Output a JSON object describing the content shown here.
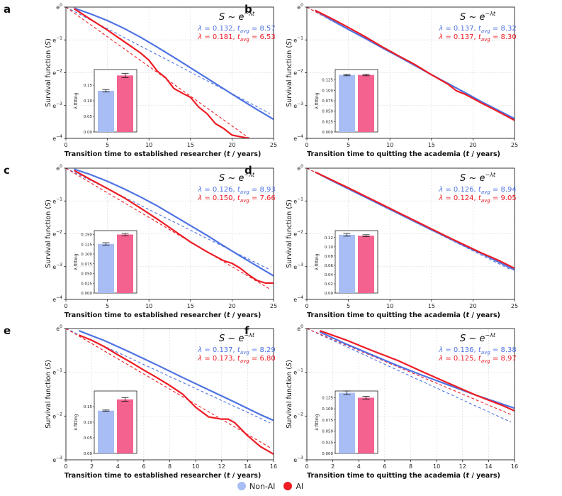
{
  "colors": {
    "nonai": "#4f73e3",
    "ai": "#ee1c25",
    "nonai_bar": "#a9bdf5",
    "ai_bar": "#f4628f"
  },
  "legend": [
    {
      "label": "Non-AI",
      "color": "#a9bdf5"
    },
    {
      "label": "AI",
      "color": "#ee1c25"
    }
  ],
  "chart_data": [
    {
      "panel": "a",
      "type": "line",
      "formula": "S ~ e^{-λt}",
      "xlabel": "Transition time to established researcher (t / years)",
      "ylabel": "Survival function (S)",
      "xlim": [
        0,
        25
      ],
      "xticks": [
        0,
        5,
        10,
        15,
        20,
        25
      ],
      "ylim": [
        -4,
        0
      ],
      "yticks": [
        0,
        -1,
        -2,
        -3,
        -4
      ],
      "series": [
        {
          "name": "Non-AI",
          "lambda": 0.132,
          "tavg": 8.57,
          "x": [
            1,
            3,
            5,
            7,
            9,
            11,
            13,
            15,
            17,
            19,
            21,
            23,
            25
          ],
          "y": [
            -0.03,
            -0.21,
            -0.41,
            -0.65,
            -0.92,
            -1.22,
            -1.53,
            -1.85,
            -2.17,
            -2.49,
            -2.81,
            -3.12,
            -3.42
          ]
        },
        {
          "name": "AI",
          "lambda": 0.181,
          "tavg": 6.53,
          "x": [
            1,
            3,
            5,
            7,
            9,
            10,
            11,
            12,
            13,
            14,
            15,
            16,
            17,
            18,
            19,
            20,
            21,
            22
          ],
          "y": [
            -0.05,
            -0.38,
            -0.7,
            -1.05,
            -1.4,
            -1.62,
            -1.95,
            -2.15,
            -2.48,
            -2.62,
            -2.75,
            -3.05,
            -3.25,
            -3.55,
            -3.7,
            -3.9,
            -3.95,
            -4.0
          ]
        }
      ],
      "bars": {
        "ylim": [
          0,
          0.2
        ],
        "yticks": [
          "0.00",
          "0.05",
          "0.10",
          "0.15"
        ],
        "ylabel": "λ fitting",
        "values": [
          0.132,
          0.181
        ],
        "errors": [
          0.004,
          0.007
        ]
      }
    },
    {
      "panel": "b",
      "type": "line",
      "formula": "S ~ e^{-λt}",
      "xlabel": "Transition time to quitting the academia (t / years)",
      "ylabel": "Survival function (S)",
      "xlim": [
        0,
        25
      ],
      "xticks": [
        0,
        5,
        10,
        15,
        20,
        25
      ],
      "ylim": [
        -4,
        0
      ],
      "yticks": [
        0,
        -1,
        -2,
        -3,
        -4
      ],
      "series": [
        {
          "name": "Non-AI",
          "lambda": 0.137,
          "tavg": 8.32,
          "x": [
            1,
            3,
            5,
            7,
            9,
            11,
            13,
            15,
            17,
            19,
            21,
            23,
            25
          ],
          "y": [
            -0.1,
            -0.4,
            -0.68,
            -0.95,
            -1.23,
            -1.5,
            -1.78,
            -2.06,
            -2.33,
            -2.6,
            -2.88,
            -3.14,
            -3.4
          ]
        },
        {
          "name": "AI",
          "lambda": 0.137,
          "tavg": 8.3,
          "x": [
            1,
            3,
            5,
            7,
            9,
            11,
            13,
            15,
            17,
            18,
            19,
            21,
            23,
            25
          ],
          "y": [
            -0.1,
            -0.35,
            -0.62,
            -0.9,
            -1.2,
            -1.48,
            -1.75,
            -2.06,
            -2.35,
            -2.55,
            -2.65,
            -2.92,
            -3.18,
            -3.45
          ]
        }
      ],
      "bars": {
        "ylim": [
          0,
          0.15
        ],
        "yticks": [
          "0.000",
          "0.025",
          "0.050",
          "0.075",
          "0.100",
          "0.125"
        ],
        "ylabel": "λ fitting",
        "values": [
          0.137,
          0.137
        ],
        "errors": [
          0.002,
          0.002
        ]
      }
    },
    {
      "panel": "c",
      "type": "line",
      "formula": "S ~ e^{-λt}",
      "xlabel": "Transition time to established researcher (t / years)",
      "ylabel": "Survival function (S)",
      "xlim": [
        0,
        25
      ],
      "xticks": [
        0,
        5,
        10,
        15,
        20,
        25
      ],
      "ylim": [
        -4,
        0
      ],
      "yticks": [
        0,
        -1,
        -2,
        -3,
        -4
      ],
      "series": [
        {
          "name": "Non-AI",
          "lambda": 0.126,
          "tavg": 8.93,
          "x": [
            1,
            3,
            5,
            7,
            9,
            11,
            13,
            15,
            17,
            19,
            21,
            23,
            25
          ],
          "y": [
            -0.03,
            -0.2,
            -0.4,
            -0.63,
            -0.88,
            -1.15,
            -1.45,
            -1.75,
            -2.05,
            -2.37,
            -2.68,
            -2.98,
            -3.28
          ]
        },
        {
          "name": "AI",
          "lambda": 0.15,
          "tavg": 7.66,
          "x": [
            1,
            3,
            5,
            7,
            9,
            11,
            13,
            15,
            17,
            19,
            20,
            21,
            22,
            23,
            24,
            25
          ],
          "y": [
            -0.07,
            -0.35,
            -0.62,
            -0.9,
            -1.22,
            -1.55,
            -1.9,
            -2.25,
            -2.55,
            -2.82,
            -2.9,
            -3.05,
            -3.25,
            -3.42,
            -3.5,
            -3.5
          ]
        }
      ],
      "bars": {
        "ylim": [
          0,
          0.16
        ],
        "yticks": [
          "0.000",
          "0.025",
          "0.050",
          "0.075",
          "0.100",
          "0.125",
          "0.150"
        ],
        "ylabel": "λ fitting",
        "values": [
          0.126,
          0.15
        ],
        "errors": [
          0.003,
          0.003
        ]
      }
    },
    {
      "panel": "d",
      "type": "line",
      "formula": "S ~ e^{-λt}",
      "xlabel": "Transition time to quitting the academia (t / years)",
      "ylabel": "Survival function (S)",
      "xlim": [
        0,
        25
      ],
      "xticks": [
        0,
        5,
        10,
        15,
        20,
        25
      ],
      "ylim": [
        -4,
        0
      ],
      "yticks": [
        0,
        -1,
        -2,
        -3,
        -4
      ],
      "series": [
        {
          "name": "Non-AI",
          "lambda": 0.126,
          "tavg": 8.94,
          "x": [
            1,
            3,
            5,
            7,
            9,
            11,
            13,
            15,
            17,
            19,
            21,
            23,
            25
          ],
          "y": [
            -0.12,
            -0.38,
            -0.63,
            -0.88,
            -1.13,
            -1.38,
            -1.63,
            -1.88,
            -2.12,
            -2.37,
            -2.6,
            -2.85,
            -3.1
          ]
        },
        {
          "name": "AI",
          "lambda": 0.124,
          "tavg": 9.05,
          "x": [
            1,
            3,
            5,
            7,
            9,
            11,
            13,
            15,
            17,
            19,
            21,
            23,
            25
          ],
          "y": [
            -0.12,
            -0.36,
            -0.6,
            -0.85,
            -1.1,
            -1.35,
            -1.6,
            -1.85,
            -2.1,
            -2.34,
            -2.58,
            -2.8,
            -3.05
          ]
        }
      ],
      "bars": {
        "ylim": [
          0,
          0.135
        ],
        "yticks": [
          "0.00",
          "0.02",
          "0.04",
          "0.06",
          "0.08",
          "0.10",
          "0.12"
        ],
        "ylabel": "λ fitting",
        "values": [
          0.126,
          0.124
        ],
        "errors": [
          0.003,
          0.002
        ]
      }
    },
    {
      "panel": "e",
      "type": "line",
      "formula": "S ~ e^{-λt}",
      "xlabel": "Transition time to established researcher (t / years)",
      "ylabel": "Survival function (S)",
      "xlim": [
        0,
        16
      ],
      "xticks": [
        0,
        2,
        4,
        6,
        8,
        10,
        12,
        14,
        16
      ],
      "ylim": [
        -3,
        0
      ],
      "yticks": [
        0,
        -1,
        -2,
        -3
      ],
      "series": [
        {
          "name": "Non-AI",
          "lambda": 0.137,
          "tavg": 8.29,
          "x": [
            1,
            3,
            5,
            7,
            9,
            11,
            13,
            15,
            16
          ],
          "y": [
            -0.05,
            -0.28,
            -0.55,
            -0.83,
            -1.12,
            -1.4,
            -1.68,
            -1.97,
            -2.1
          ]
        },
        {
          "name": "AI",
          "lambda": 0.173,
          "tavg": 6.8,
          "x": [
            1,
            2,
            3,
            4,
            5,
            6,
            7,
            8,
            9,
            10,
            11,
            12,
            12.5,
            13,
            14,
            15,
            16
          ],
          "y": [
            -0.15,
            -0.27,
            -0.42,
            -0.6,
            -0.77,
            -0.95,
            -1.12,
            -1.3,
            -1.5,
            -1.8,
            -2.02,
            -2.07,
            -2.07,
            -2.15,
            -2.45,
            -2.7,
            -2.87
          ]
        }
      ],
      "bars": {
        "ylim": [
          0,
          0.2
        ],
        "yticks": [
          "0.00",
          "0.05",
          "0.10",
          "0.15"
        ],
        "ylabel": "λ fitting",
        "values": [
          0.137,
          0.173
        ],
        "errors": [
          0.002,
          0.006
        ]
      }
    },
    {
      "panel": "f",
      "type": "line",
      "formula": "S ~ e^{-λt}",
      "xlabel": "Transition time to quitting the academia (t / years)",
      "ylabel": "Survival function (S)",
      "xlim": [
        0,
        16
      ],
      "xticks": [
        0,
        2,
        4,
        6,
        8,
        10,
        12,
        14,
        16
      ],
      "ylim": [
        -3,
        0
      ],
      "yticks": [
        0,
        -1,
        -2,
        -3
      ],
      "series": [
        {
          "name": "Non-AI",
          "lambda": 0.136,
          "tavg": 8.38,
          "x": [
            1,
            3,
            5,
            7,
            9,
            11,
            13,
            15,
            16
          ],
          "y": [
            -0.08,
            -0.35,
            -0.6,
            -0.85,
            -1.08,
            -1.3,
            -1.52,
            -1.72,
            -1.82
          ]
        },
        {
          "name": "AI",
          "lambda": 0.125,
          "tavg": 8.97,
          "x": [
            1,
            3,
            5,
            7,
            9,
            11,
            13,
            15,
            16
          ],
          "y": [
            -0.05,
            -0.26,
            -0.5,
            -0.73,
            -1.0,
            -1.26,
            -1.52,
            -1.75,
            -1.88
          ]
        }
      ],
      "bars": {
        "ylim": [
          0,
          0.14
        ],
        "yticks": [
          "0.000",
          "0.025",
          "0.050",
          "0.075",
          "0.100",
          "0.125"
        ],
        "ylabel": "λ fitting",
        "values": [
          0.136,
          0.125
        ],
        "errors": [
          0.004,
          0.003
        ]
      }
    }
  ]
}
